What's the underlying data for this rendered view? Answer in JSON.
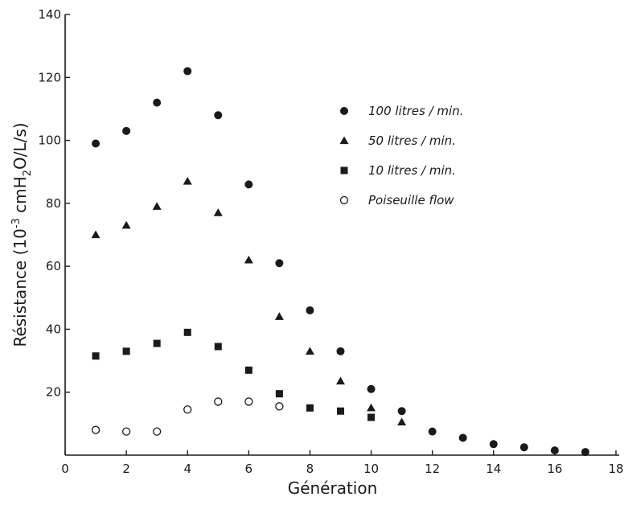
{
  "chart_data": {
    "type": "scatter",
    "title": "",
    "xlabel": "Génération",
    "ylabel_parts": {
      "before": "Résistance (10",
      "sup": "-3",
      "mid": " cmH",
      "sub": "2",
      "after": "O/L/s)"
    },
    "xlim": [
      0,
      18
    ],
    "ylim": [
      0,
      140
    ],
    "x_ticks": [
      "0",
      "2",
      "4",
      "6",
      "8",
      "10",
      "12",
      "14",
      "16",
      "18"
    ],
    "y_ticks": [
      "20",
      "40",
      "60",
      "80",
      "100",
      "120",
      "140"
    ],
    "grid": false,
    "legend_position": "top-right",
    "series": [
      {
        "name": "100 litres / min.",
        "marker": "filled-circle",
        "points": [
          [
            1,
            99
          ],
          [
            2,
            103
          ],
          [
            3,
            112
          ],
          [
            4,
            122
          ],
          [
            5,
            108
          ],
          [
            6,
            86
          ],
          [
            7,
            61
          ],
          [
            8,
            46
          ],
          [
            9,
            33
          ],
          [
            10,
            21
          ],
          [
            11,
            14
          ],
          [
            12,
            7.5
          ],
          [
            13,
            5.5
          ],
          [
            14,
            3.5
          ],
          [
            15,
            2.5
          ],
          [
            16,
            1.5
          ],
          [
            17,
            1
          ]
        ]
      },
      {
        "name": "50 litres / min.",
        "marker": "filled-triangle",
        "points": [
          [
            1,
            70
          ],
          [
            2,
            73
          ],
          [
            3,
            79
          ],
          [
            4,
            87
          ],
          [
            5,
            77
          ],
          [
            6,
            62
          ],
          [
            7,
            44
          ],
          [
            8,
            33
          ],
          [
            9,
            23.5
          ],
          [
            10,
            15
          ],
          [
            11,
            10.5
          ]
        ]
      },
      {
        "name": "10 litres / min.",
        "marker": "filled-square",
        "points": [
          [
            1,
            31.5
          ],
          [
            2,
            33
          ],
          [
            3,
            35.5
          ],
          [
            4,
            39
          ],
          [
            5,
            34.5
          ],
          [
            6,
            27
          ],
          [
            7,
            19.5
          ],
          [
            8,
            15
          ],
          [
            9,
            14
          ],
          [
            10,
            12
          ]
        ]
      },
      {
        "name": "Poiseuille flow",
        "marker": "open-circle",
        "points": [
          [
            1,
            8
          ],
          [
            2,
            7.5
          ],
          [
            3,
            7.5
          ],
          [
            4,
            14.5
          ],
          [
            5,
            17
          ],
          [
            6,
            17
          ],
          [
            7,
            15.5
          ]
        ]
      }
    ]
  },
  "colors": {
    "ink": "#1a1a1a",
    "background": "#ffffff"
  }
}
